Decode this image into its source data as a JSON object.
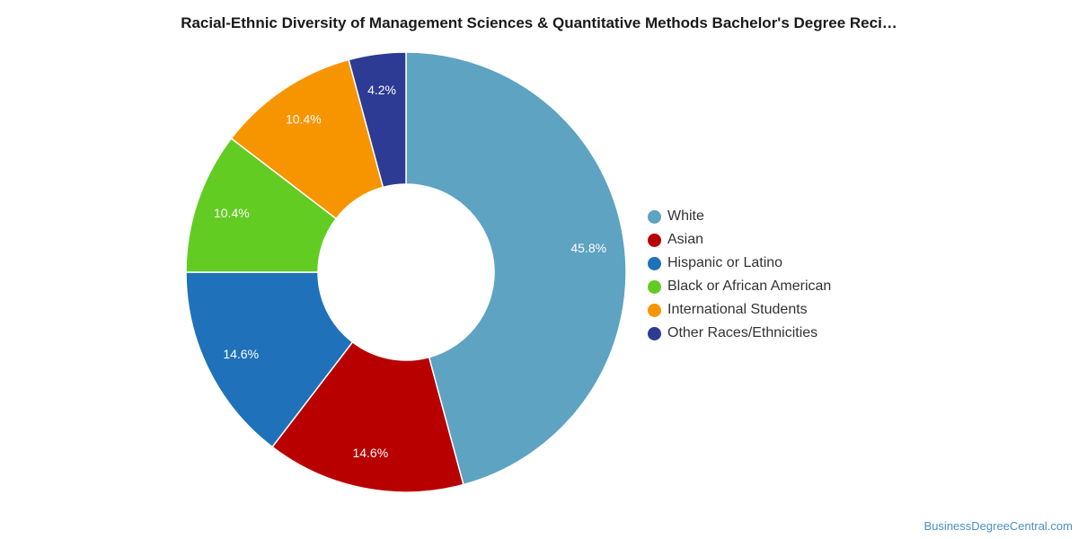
{
  "chart_data": {
    "type": "pie",
    "title": "Racial-Ethnic Diversity of Management Sciences & Quantitative Methods Bachelor's Degree Reci…",
    "donut": true,
    "legend_position": "right",
    "slices": [
      {
        "label": "White",
        "value": 45.8,
        "display": "45.8%",
        "color": "#5ea3c1"
      },
      {
        "label": "Asian",
        "value": 14.6,
        "display": "14.6%",
        "color": "#b90000"
      },
      {
        "label": "Hispanic or Latino",
        "value": 14.6,
        "display": "14.6%",
        "color": "#1f72b9"
      },
      {
        "label": "Black or African American",
        "value": 10.4,
        "display": "10.4%",
        "color": "#62cc23"
      },
      {
        "label": "International Students",
        "value": 10.4,
        "display": "10.4%",
        "color": "#f79500"
      },
      {
        "label": "Other Races/Ethnicities",
        "value": 4.2,
        "display": "4.2%",
        "color": "#2d3b95"
      }
    ]
  },
  "footer": {
    "watermark": "BusinessDegreeCentral.com"
  }
}
